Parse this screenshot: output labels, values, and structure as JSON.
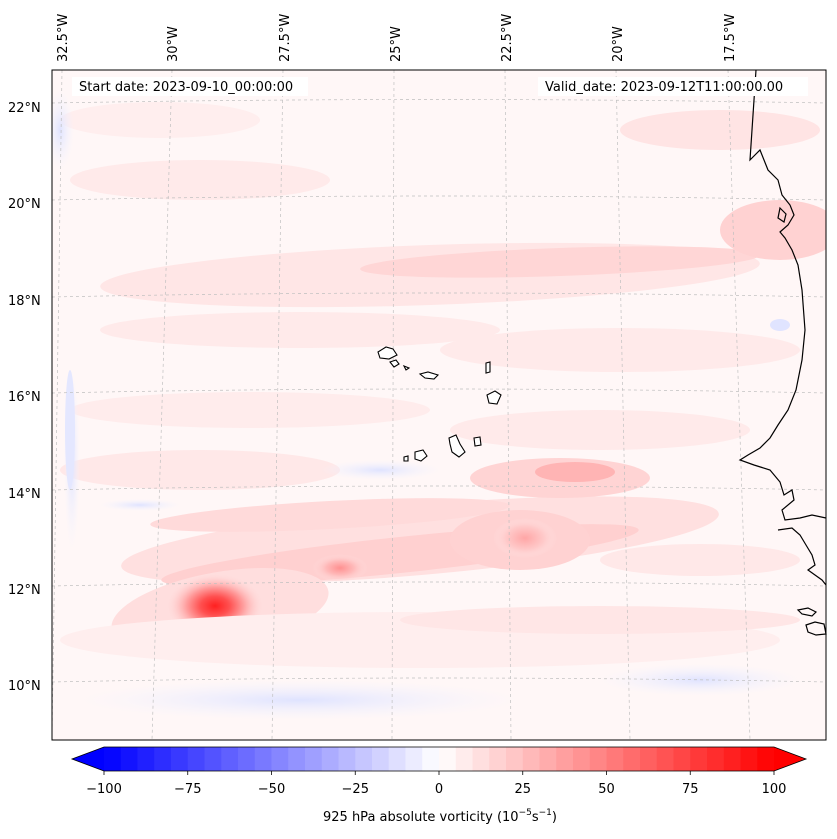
{
  "map": {
    "start_date": "Start date: 2023-09-10_00:00:00",
    "valid_date": "Valid_date: 2023-09-12T11:00:00.00",
    "lon_ticks": [
      "32.5°W",
      "30°W",
      "27.5°W",
      "25°W",
      "22.5°W",
      "20°W",
      "17.5°W"
    ],
    "lat_ticks": [
      "22°N",
      "20°N",
      "18°N",
      "16°N",
      "14°N",
      "12°N",
      "10°N"
    ]
  },
  "colorbar": {
    "ticks": [
      "−100",
      "−75",
      "−50",
      "−25",
      "0",
      "25",
      "50",
      "75",
      "100"
    ],
    "min": -100,
    "max": 100,
    "label_prefix": "925 hPa absolute vorticity (10",
    "label_exp1": "−5",
    "label_mid": "s",
    "label_exp2": "−1",
    "label_suffix": ")",
    "colors": {
      "negative": "#0000ff",
      "zero": "#ffffff",
      "positive": "#ff0000"
    }
  },
  "features": {
    "vortex_peak_location": "12°N 29°W",
    "coastline_color": "#000000"
  }
}
